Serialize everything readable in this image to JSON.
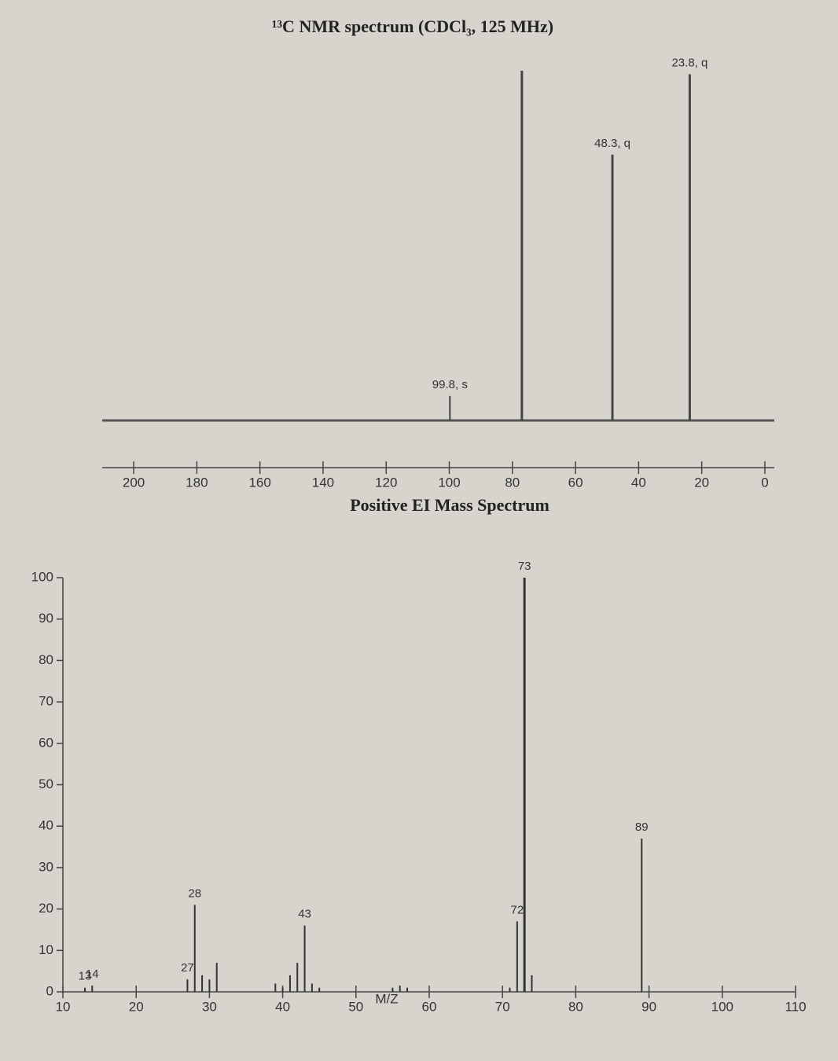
{
  "chart_data": [
    {
      "type": "stem",
      "title": "¹³C NMR spectrum (CDCl₃, 125 MHz)",
      "x": [
        99.8,
        77.0,
        48.3,
        23.8
      ],
      "values": [
        7,
        100,
        76,
        99
      ],
      "peak_labels": [
        "99.8, s",
        null,
        "48.3, q",
        "23.8, q"
      ],
      "xlim": [
        205,
        -3
      ],
      "xticks": [
        200,
        180,
        160,
        140,
        120,
        100,
        80,
        60,
        40,
        20,
        0
      ],
      "ylim": [
        0,
        100
      ],
      "color": "#444"
    },
    {
      "type": "stem",
      "title": "Positive EI Mass Spectrum",
      "x_label": "M/Z",
      "x": [
        13,
        14,
        27,
        28,
        29,
        30,
        31,
        39,
        40,
        41,
        42,
        43,
        44,
        45,
        55,
        56,
        57,
        71,
        72,
        73,
        74,
        89
      ],
      "values": [
        1,
        1.5,
        3,
        21,
        4,
        3,
        7,
        2,
        1,
        4,
        7,
        16,
        2,
        1,
        1,
        1.5,
        1,
        1,
        17,
        100,
        4,
        37
      ],
      "peak_labels": [
        "13",
        "14",
        "27",
        "28",
        null,
        null,
        null,
        null,
        null,
        null,
        null,
        "43",
        null,
        null,
        null,
        null,
        null,
        null,
        "72",
        "73",
        null,
        "89"
      ],
      "xlim": [
        10,
        110
      ],
      "xticks": [
        10,
        20,
        30,
        40,
        50,
        60,
        70,
        80,
        90,
        100,
        110
      ],
      "ylim": [
        0,
        100
      ],
      "yticks": [
        0,
        10,
        20,
        30,
        40,
        50,
        60,
        70,
        80,
        90,
        100
      ],
      "color": "#333"
    }
  ]
}
